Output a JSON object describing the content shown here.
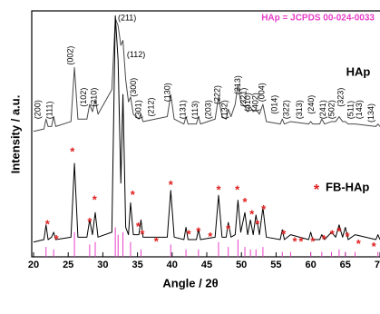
{
  "chart_data": {
    "type": "line",
    "xlabel": "Angle / 2θ",
    "ylabel": "Intensity / a.u.",
    "xlim": [
      20,
      70
    ],
    "xticks": [
      20,
      25,
      30,
      35,
      40,
      45,
      50,
      55,
      60,
      65,
      70
    ],
    "ylim": [
      0,
      100
    ],
    "x": [
      20,
      21.5,
      21.8,
      22.1,
      22.6,
      22.9,
      23.2,
      25.4,
      25.9,
      26.4,
      27.7,
      28.1,
      28.5,
      28.9,
      29.3,
      31.3,
      31.8,
      32.2,
      32.6,
      32.9,
      33.3,
      33.7,
      34.0,
      34.4,
      35.2,
      35.5,
      35.8,
      39.3,
      39.8,
      40.3,
      41.7,
      42.0,
      42.3,
      43.5,
      43.8,
      44.1,
      46.2,
      46.7,
      47.2,
      47.8,
      48.1,
      48.5,
      49.1,
      49.5,
      49.9,
      50.5,
      50.9,
      51.3,
      51.7,
      52.1,
      52.6,
      53.1,
      53.6,
      55.6,
      55.9,
      56.2,
      57.1,
      59.7,
      60.0,
      60.3,
      61.3,
      61.6,
      62.0,
      63.0,
      63.6,
      64.1,
      64.6,
      65.0,
      65.4,
      66.4,
      69.4,
      69.7,
      70
    ],
    "series": [
      {
        "name": "HAp",
        "color": "#4a4a4a",
        "values": [
          51,
          52,
          56,
          53,
          53,
          57,
          53,
          55,
          77,
          56,
          56,
          62,
          59,
          64,
          58,
          68,
          97,
          94,
          86,
          88,
          72,
          63,
          65,
          58,
          56,
          58,
          55,
          57,
          66,
          56,
          54,
          57,
          54,
          54,
          57,
          54,
          56,
          65,
          57,
          56,
          60,
          57,
          62,
          70,
          63,
          61,
          59,
          61,
          59,
          60,
          58,
          62,
          55,
          54,
          56,
          54,
          55,
          54,
          55,
          54,
          54,
          56,
          54,
          55,
          55,
          57,
          55,
          55,
          54,
          54,
          53,
          54,
          53
        ]
      },
      {
        "name": "FB-HAp",
        "color": "#000000",
        "values": [
          6,
          7,
          13,
          7,
          8,
          10,
          7,
          8,
          38,
          8,
          8,
          15,
          9,
          18,
          8,
          10,
          98,
          80,
          30,
          66,
          12,
          9,
          22,
          9,
          9,
          15,
          8,
          8,
          27,
          8,
          7,
          12,
          7,
          7,
          11,
          7,
          8,
          25,
          8,
          8,
          14,
          8,
          9,
          23,
          10,
          18,
          9,
          15,
          9,
          17,
          9,
          20,
          8,
          7,
          11,
          7,
          9,
          7,
          10,
          7,
          7,
          9,
          7,
          10,
          8,
          13,
          8,
          12,
          7,
          9,
          7,
          9,
          7
        ]
      }
    ],
    "reference": {
      "label": "HAp = JCPDS 00-024-0033",
      "color": "#e83fc8",
      "x": [
        21.8,
        22.9,
        25.9,
        28.1,
        28.9,
        31.8,
        32.2,
        32.9,
        34.0,
        35.5,
        39.8,
        42.0,
        43.8,
        46.7,
        48.1,
        49.5,
        50.5,
        51.3,
        52.1,
        53.1,
        55.9,
        57.1,
        60.0,
        61.6,
        63.0,
        64.1,
        65.0,
        66.4,
        69.7
      ],
      "values": [
        4,
        3,
        10,
        5,
        6,
        12,
        9,
        10,
        6,
        3,
        5,
        3,
        3,
        6,
        4,
        7,
        4,
        3,
        3,
        4,
        2,
        2,
        2,
        2,
        2,
        3,
        2,
        2,
        2
      ]
    },
    "asterisks": {
      "symbol": "*",
      "color": "#e02020",
      "x": [
        22.0,
        23.3,
        25.6,
        28.1,
        28.8,
        34.3,
        35.1,
        35.7,
        37.7,
        39.8,
        42.4,
        43.8,
        45.5,
        46.7,
        48.1,
        49.4,
        50.5,
        51.5,
        52.3,
        53.2,
        56.1,
        57.7,
        58.6,
        60.3,
        61.9,
        63.1,
        64.1,
        65.3,
        66.9,
        69.1
      ],
      "values": [
        14,
        8,
        43.5,
        15,
        24,
        26,
        13,
        10,
        7,
        30,
        10,
        11,
        9,
        28,
        12,
        28,
        23,
        18,
        14,
        20,
        10,
        7,
        7,
        7,
        8,
        10,
        11,
        9,
        6,
        5
      ]
    },
    "peak_labels": [
      {
        "text": "(200)",
        "x": 20.7,
        "y": 56
      },
      {
        "text": "(111)",
        "x": 22.4,
        "y": 56
      },
      {
        "text": "(002)",
        "x": 25.4,
        "y": 78
      },
      {
        "text": "(102)",
        "x": 27.3,
        "y": 61
      },
      {
        "text": "(210)",
        "x": 28.8,
        "y": 61
      },
      {
        "text": "(211)",
        "x": 33.5,
        "y": 97
      },
      {
        "text": "(112)",
        "x": 34.8,
        "y": 82
      },
      {
        "text": "(300)",
        "x": 34.5,
        "y": 65
      },
      {
        "text": "(301)",
        "x": 35.2,
        "y": 56
      },
      {
        "text": "(212)",
        "x": 37.0,
        "y": 57
      },
      {
        "text": "(130)",
        "x": 39.4,
        "y": 63
      },
      {
        "text": "(131)",
        "x": 41.6,
        "y": 56
      },
      {
        "text": "(113)",
        "x": 43.4,
        "y": 56
      },
      {
        "text": "(203)",
        "x": 45.3,
        "y": 56
      },
      {
        "text": "(222)",
        "x": 46.6,
        "y": 62
      },
      {
        "text": "(132)",
        "x": 47.6,
        "y": 56
      },
      {
        "text": "(213)",
        "x": 49.5,
        "y": 66
      },
      {
        "text": "(321)",
        "x": 50.4,
        "y": 61
      },
      {
        "text": "(410)",
        "x": 51.0,
        "y": 59
      },
      {
        "text": "(402)",
        "x": 52.1,
        "y": 59
      },
      {
        "text": "(004)",
        "x": 53.0,
        "y": 63
      },
      {
        "text": "(014)",
        "x": 54.8,
        "y": 58
      },
      {
        "text": "(322)",
        "x": 56.5,
        "y": 56
      },
      {
        "text": "(313)",
        "x": 58.4,
        "y": 56
      },
      {
        "text": "(240)",
        "x": 60.1,
        "y": 58
      },
      {
        "text": "(241)",
        "x": 61.8,
        "y": 56
      },
      {
        "text": "(502)",
        "x": 63.1,
        "y": 56
      },
      {
        "text": "(323)",
        "x": 64.4,
        "y": 61
      },
      {
        "text": "(511)",
        "x": 65.8,
        "y": 56
      },
      {
        "text": "(143)",
        "x": 67.1,
        "y": 56
      },
      {
        "text": "(134)",
        "x": 68.8,
        "y": 54.6
      }
    ]
  }
}
